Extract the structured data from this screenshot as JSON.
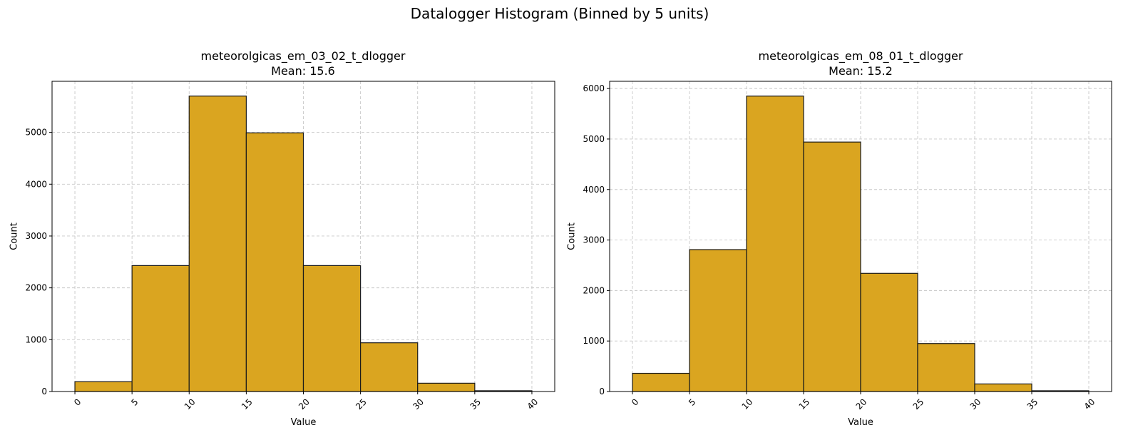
{
  "figure": {
    "title": "Datalogger Histogram (Binned by 5 units)"
  },
  "chart_data": [
    {
      "type": "bar",
      "title": "meteorolgicas_em_03_02_t_dlogger",
      "subtitle": "Mean: 15.6",
      "xlabel": "Value",
      "ylabel": "Count",
      "bin_edges": [
        0,
        5,
        10,
        15,
        20,
        25,
        30,
        35,
        40
      ],
      "values": [
        190,
        2430,
        5700,
        4990,
        2430,
        940,
        160,
        15
      ],
      "xticks": [
        0,
        5,
        10,
        15,
        20,
        25,
        30,
        35,
        40
      ],
      "yticks": [
        0,
        1000,
        2000,
        3000,
        4000,
        5000
      ],
      "xlim": [
        -2,
        42
      ],
      "ylim": [
        0,
        5985
      ],
      "grid": true,
      "bar_color": "#DAA520"
    },
    {
      "type": "bar",
      "title": "meteorolgicas_em_08_01_t_dlogger",
      "subtitle": "Mean: 15.2",
      "xlabel": "Value",
      "ylabel": "Count",
      "bin_edges": [
        0,
        5,
        10,
        15,
        20,
        25,
        30,
        35,
        40
      ],
      "values": [
        360,
        2810,
        5850,
        4940,
        2340,
        950,
        150,
        15
      ],
      "xticks": [
        0,
        5,
        10,
        15,
        20,
        25,
        30,
        35,
        40
      ],
      "yticks": [
        0,
        1000,
        2000,
        3000,
        4000,
        5000,
        6000
      ],
      "xlim": [
        -2,
        42
      ],
      "ylim": [
        0,
        6143
      ],
      "grid": true,
      "bar_color": "#DAA520"
    }
  ]
}
